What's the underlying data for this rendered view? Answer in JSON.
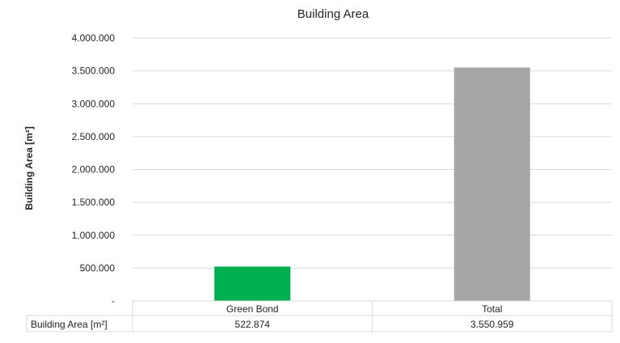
{
  "chart_data": {
    "type": "bar",
    "title": "Building Area",
    "ylabel": "Building Area [m²]",
    "xlabel": "",
    "categories": [
      "Green Bond",
      "Total"
    ],
    "series": [
      {
        "name": "Building Area [m²]",
        "values": [
          522874,
          3550959
        ],
        "value_labels": [
          "522.874",
          "3.550.959"
        ],
        "colors": [
          "#00b050",
          "#a6a6a6"
        ]
      }
    ],
    "ylim": [
      0,
      4000000
    ],
    "yticks": [
      0,
      500000,
      1000000,
      1500000,
      2000000,
      2500000,
      3000000,
      3500000,
      4000000
    ],
    "ytick_labels": [
      "-",
      "500.000",
      "1.000.000",
      "1.500.000",
      "2.000.000",
      "2.500.000",
      "3.000.000",
      "3.500.000",
      "4.000.000"
    ],
    "grid": true,
    "legend": "none",
    "data_table": true,
    "colors": {
      "gridline": "#d9d9d9",
      "text": "#262626"
    }
  }
}
